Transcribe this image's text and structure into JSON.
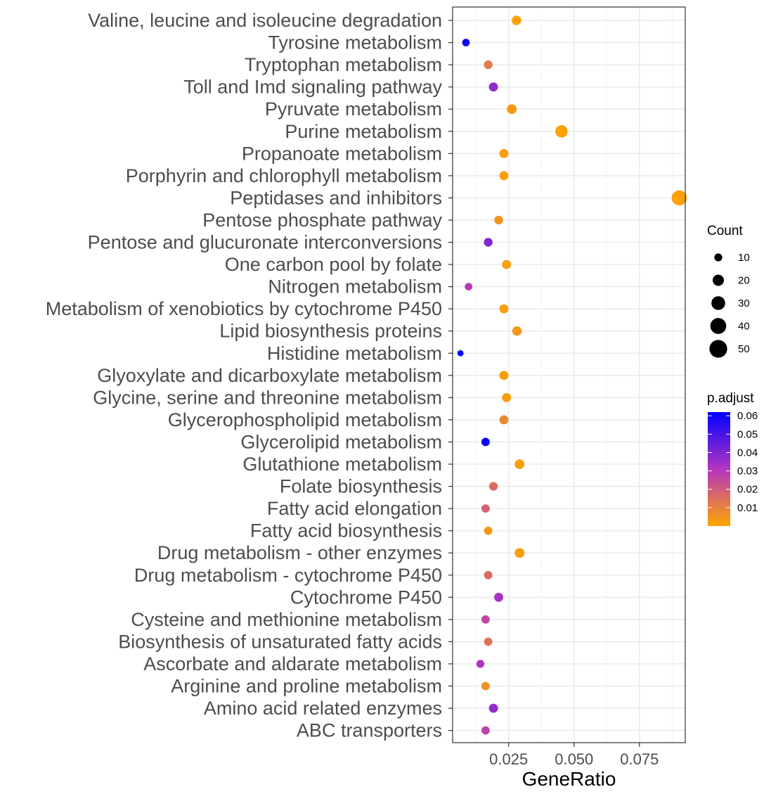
{
  "chart_data": {
    "type": "scatter",
    "xlabel": "GeneRatio",
    "ylabel": "",
    "xlim": [
      0.0036,
      0.0925
    ],
    "x_ticks": [
      0.025,
      0.05,
      0.075
    ],
    "x_tick_labels": [
      "0.025",
      "0.050",
      "0.075"
    ],
    "grid": true,
    "categories": [
      "Valine, leucine and isoleucine degradation",
      "Tyrosine metabolism",
      "Tryptophan metabolism",
      "Toll and Imd signaling pathway",
      "Pyruvate metabolism",
      "Purine metabolism",
      "Propanoate metabolism",
      "Porphyrin and chlorophyll metabolism",
      "Peptidases and inhibitors",
      "Pentose phosphate pathway",
      "Pentose and glucuronate interconversions",
      "One carbon pool by folate",
      "Nitrogen metabolism",
      "Metabolism of xenobiotics by cytochrome P450",
      "Lipid biosynthesis proteins",
      "Histidine metabolism",
      "Glyoxylate and dicarboxylate metabolism",
      "Glycine, serine and threonine metabolism",
      "Glycerophospholipid metabolism",
      "Glycerolipid metabolism",
      "Glutathione metabolism",
      "Folate biosynthesis",
      "Fatty acid elongation",
      "Fatty acid biosynthesis",
      "Drug metabolism - other enzymes",
      "Drug metabolism - cytochrome P450",
      "Cytochrome P450",
      "Cysteine and methionine metabolism",
      "Biosynthesis of unsaturated fatty acids",
      "Ascorbate and aldarate metabolism",
      "Arginine and proline metabolism",
      "Amino acid related enzymes",
      "ABC transporters"
    ],
    "gene_ratio": [
      0.028,
      0.0087,
      0.0172,
      0.0192,
      0.0262,
      0.0452,
      0.0232,
      0.0232,
      0.0902,
      0.0212,
      0.0172,
      0.0242,
      0.0097,
      0.0232,
      0.0282,
      0.0066,
      0.0232,
      0.0242,
      0.0232,
      0.0162,
      0.0292,
      0.0192,
      0.0162,
      0.0172,
      0.0292,
      0.0172,
      0.0212,
      0.0162,
      0.0172,
      0.0142,
      0.0162,
      0.0192,
      0.0162
    ],
    "count": [
      14,
      9,
      12,
      13,
      15,
      24,
      13,
      13,
      36,
      12,
      12,
      13,
      9,
      13,
      14,
      6,
      13,
      13,
      13,
      11,
      15,
      12,
      11,
      11,
      15,
      11,
      13,
      11,
      11,
      10,
      11,
      13,
      11
    ],
    "p_adjust": [
      0.001,
      0.06,
      0.012,
      0.037,
      0.003,
      0.001,
      0.002,
      0.002,
      0.001,
      0.005,
      0.04,
      0.002,
      0.03,
      0.002,
      0.004,
      0.062,
      0.002,
      0.002,
      0.008,
      0.061,
      0.002,
      0.016,
      0.018,
      0.004,
      0.002,
      0.016,
      0.033,
      0.026,
      0.014,
      0.032,
      0.006,
      0.037,
      0.027
    ],
    "size_legend": {
      "title": "Count",
      "values": [
        10,
        20,
        30,
        40,
        50
      ],
      "labels": [
        "10",
        "20",
        "30",
        "40",
        "50"
      ]
    },
    "color_legend": {
      "title": "p.adjust",
      "range": [
        0.0,
        0.062
      ],
      "ticks": [
        0.06,
        0.05,
        0.04,
        0.03,
        0.02,
        0.01
      ],
      "labels": [
        "0.06",
        "0.05",
        "0.04",
        "0.03",
        "0.02",
        "0.01"
      ],
      "low_color": "#FFA500",
      "mid_color": "#B535C0",
      "high_color": "#0000FF"
    }
  },
  "colors": {
    "panel_border": "#333333",
    "grid_major": "#ebebeb",
    "grid_minor": "#f5f5f5",
    "axis_text": "#4d4d4d"
  }
}
